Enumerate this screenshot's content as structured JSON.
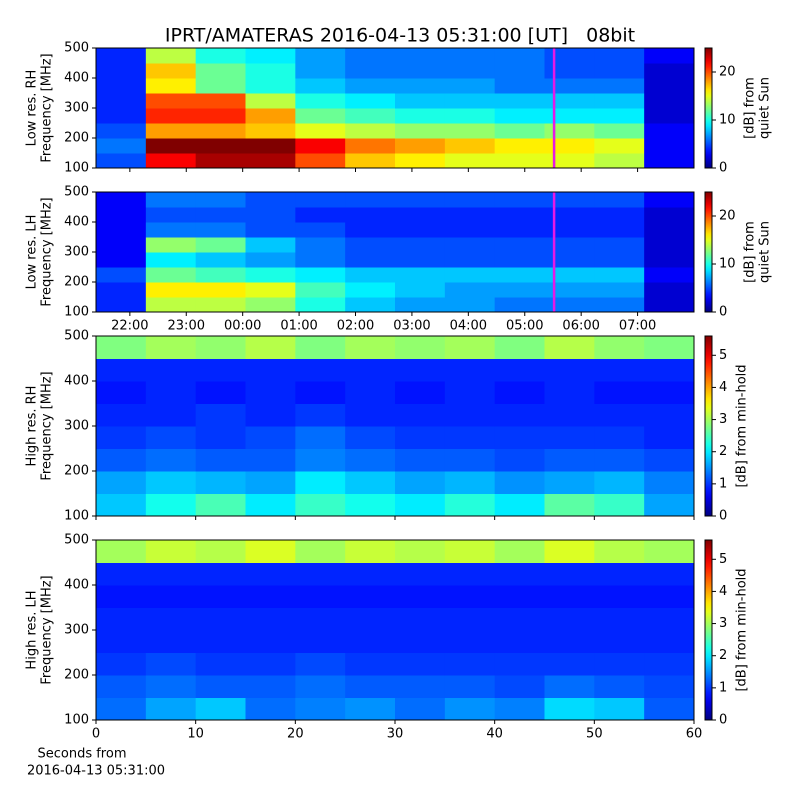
{
  "title": "IPRT/AMATERAS 2016-04-13 05:31:00 [UT]   08bit",
  "x_label": [
    "Seconds from",
    "2016-04-13 05:31:00"
  ],
  "chart_data": [
    {
      "type": "heatmap",
      "y_label": [
        "Low res. RH",
        "Frequency [MHz]"
      ],
      "colormap": "jet",
      "xlim": [
        21.4,
        32.0
      ],
      "xticks": [
        22,
        23,
        24,
        25,
        26,
        27,
        28,
        29,
        30,
        31
      ],
      "show_xtick_labels": false,
      "ylim": [
        100,
        500
      ],
      "yticks": [
        100,
        200,
        300,
        400,
        500
      ],
      "clim": [
        0,
        25
      ],
      "cticks": [
        0,
        10,
        20
      ],
      "clabel": [
        "[dB] from",
        "quiet Sun"
      ],
      "cursor_x": 29.52,
      "cursor_color": "#e619e6",
      "z": [
        [
          5,
          22,
          24,
          24,
          20,
          17,
          16,
          15,
          15,
          15,
          14,
          3
        ],
        [
          6,
          25,
          25,
          25,
          22,
          19,
          18,
          17,
          16,
          16,
          15,
          3
        ],
        [
          5,
          18,
          18,
          17,
          15,
          14,
          13,
          13,
          12,
          13,
          12,
          3
        ],
        [
          4,
          21,
          21,
          18,
          12,
          11,
          10,
          10,
          9,
          9,
          9,
          2
        ],
        [
          4,
          20,
          20,
          14,
          10,
          9,
          8,
          8,
          8,
          8,
          8,
          2
        ],
        [
          4,
          16,
          12,
          10,
          8,
          7,
          7,
          7,
          6,
          6,
          6,
          2
        ],
        [
          4,
          17,
          12,
          10,
          7,
          6,
          6,
          6,
          6,
          5,
          5,
          2
        ],
        [
          4,
          14,
          10,
          9,
          7,
          6,
          6,
          6,
          6,
          5,
          5,
          3
        ]
      ]
    },
    {
      "type": "heatmap",
      "y_label": [
        "Low res. LH",
        "Frequency [MHz]"
      ],
      "colormap": "jet",
      "xlim": [
        21.4,
        32.0
      ],
      "xticks": [
        {
          "value": 22,
          "label": "22:00"
        },
        {
          "value": 23,
          "label": "23:00"
        },
        {
          "value": 24,
          "label": "00:00"
        },
        {
          "value": 25,
          "label": "01:00"
        },
        {
          "value": 26,
          "label": "02:00"
        },
        {
          "value": 27,
          "label": "03:00"
        },
        {
          "value": 28,
          "label": "04:00"
        },
        {
          "value": 29,
          "label": "05:00"
        },
        {
          "value": 30,
          "label": "06:00"
        },
        {
          "value": 31,
          "label": "07:00"
        }
      ],
      "show_xtick_labels": true,
      "ylim": [
        100,
        500
      ],
      "yticks": [
        100,
        200,
        300,
        400,
        500
      ],
      "clim": [
        0,
        25
      ],
      "cticks": [
        0,
        10,
        20
      ],
      "clabel": [
        "[dB] from",
        "quiet Sun"
      ],
      "cursor_x": 29.52,
      "cursor_color": "#e619e6",
      "z": [
        [
          4,
          14,
          14,
          13,
          10,
          8,
          7,
          7,
          6,
          6,
          6,
          2
        ],
        [
          4,
          16,
          16,
          15,
          11,
          9,
          8,
          7,
          7,
          7,
          7,
          2
        ],
        [
          5,
          12,
          11,
          10,
          9,
          8,
          8,
          8,
          8,
          8,
          8,
          3
        ],
        [
          3,
          9,
          8,
          7,
          6,
          5,
          5,
          5,
          5,
          5,
          5,
          2
        ],
        [
          3,
          13,
          12,
          8,
          6,
          5,
          5,
          5,
          5,
          5,
          5,
          2
        ],
        [
          3,
          6,
          6,
          5,
          5,
          4,
          4,
          4,
          4,
          4,
          4,
          2
        ],
        [
          3,
          5,
          5,
          5,
          4,
          4,
          4,
          4,
          4,
          4,
          4,
          2
        ],
        [
          3,
          6,
          6,
          5,
          5,
          5,
          5,
          5,
          5,
          5,
          5,
          3
        ]
      ]
    },
    {
      "type": "heatmap",
      "y_label": [
        "High res. RH",
        "Frequency [MHz]"
      ],
      "colormap": "jet",
      "xlim": [
        0,
        60
      ],
      "xticks": [
        0,
        10,
        20,
        30,
        40,
        50,
        60
      ],
      "show_xtick_labels": false,
      "ylim": [
        100,
        500
      ],
      "yticks": [
        100,
        200,
        300,
        400,
        500
      ],
      "clim": [
        0,
        5.6
      ],
      "cticks": [
        0,
        1,
        2,
        3,
        4,
        5
      ],
      "clabel": [
        "[dB] from min-hold"
      ],
      "z": [
        [
          1.8,
          2.2,
          2.5,
          2.0,
          2.4,
          2.2,
          2.0,
          2.3,
          2.0,
          2.6,
          2.4,
          1.6
        ],
        [
          1.6,
          1.8,
          1.7,
          1.6,
          2.0,
          1.8,
          1.6,
          1.7,
          1.5,
          1.6,
          1.7,
          1.4
        ],
        [
          1.2,
          1.3,
          1.2,
          1.2,
          1.4,
          1.3,
          1.2,
          1.2,
          1.1,
          1.2,
          1.2,
          1.1
        ],
        [
          1.0,
          1.1,
          1.0,
          1.1,
          1.3,
          1.1,
          1.0,
          1.0,
          1.0,
          1.0,
          1.0,
          0.9
        ],
        [
          0.9,
          0.9,
          1.0,
          0.9,
          1.0,
          0.9,
          0.9,
          0.9,
          0.9,
          0.9,
          0.9,
          0.9
        ],
        [
          0.8,
          0.9,
          0.8,
          0.9,
          0.8,
          0.9,
          0.8,
          0.9,
          0.8,
          0.9,
          0.8,
          0.8
        ],
        [
          0.9,
          0.9,
          0.9,
          0.9,
          0.9,
          0.9,
          0.9,
          0.9,
          0.9,
          0.9,
          0.9,
          0.9
        ],
        [
          2.8,
          3.0,
          2.9,
          3.1,
          2.8,
          3.0,
          2.9,
          3.0,
          2.8,
          3.1,
          2.9,
          2.8
        ]
      ]
    },
    {
      "type": "heatmap",
      "y_label": [
        "High res. LH",
        "Frequency [MHz]"
      ],
      "colormap": "jet",
      "xlim": [
        0,
        60
      ],
      "xticks": [
        0,
        10,
        20,
        30,
        40,
        50,
        60
      ],
      "show_xtick_labels": true,
      "ylim": [
        100,
        500
      ],
      "yticks": [
        100,
        200,
        300,
        400,
        500
      ],
      "clim": [
        0,
        5.6
      ],
      "cticks": [
        0,
        1,
        2,
        3,
        4,
        5
      ],
      "clabel": [
        "[dB] from min-hold"
      ],
      "z": [
        [
          1.3,
          1.6,
          1.8,
          1.3,
          1.4,
          1.5,
          1.3,
          1.5,
          1.4,
          1.9,
          1.8,
          1.2
        ],
        [
          1.2,
          1.3,
          1.2,
          1.2,
          1.3,
          1.2,
          1.2,
          1.2,
          1.1,
          1.3,
          1.2,
          1.1
        ],
        [
          1.0,
          1.1,
          1.0,
          1.0,
          1.1,
          1.0,
          1.0,
          1.0,
          1.0,
          1.0,
          1.0,
          1.0
        ],
        [
          0.9,
          0.9,
          0.9,
          0.9,
          0.9,
          0.9,
          0.9,
          0.9,
          0.9,
          0.9,
          0.9,
          0.9
        ],
        [
          0.9,
          0.9,
          0.9,
          0.9,
          0.9,
          0.9,
          0.9,
          0.9,
          0.9,
          0.9,
          0.9,
          0.9
        ],
        [
          0.8,
          0.8,
          0.8,
          0.8,
          0.8,
          0.8,
          0.8,
          0.8,
          0.8,
          0.8,
          0.8,
          0.8
        ],
        [
          0.9,
          0.9,
          0.9,
          0.9,
          0.9,
          0.9,
          0.9,
          0.9,
          0.9,
          0.9,
          0.9,
          0.9
        ],
        [
          3.0,
          3.2,
          3.1,
          3.3,
          3.0,
          3.2,
          3.1,
          3.2,
          3.0,
          3.3,
          3.1,
          3.0
        ]
      ]
    }
  ]
}
